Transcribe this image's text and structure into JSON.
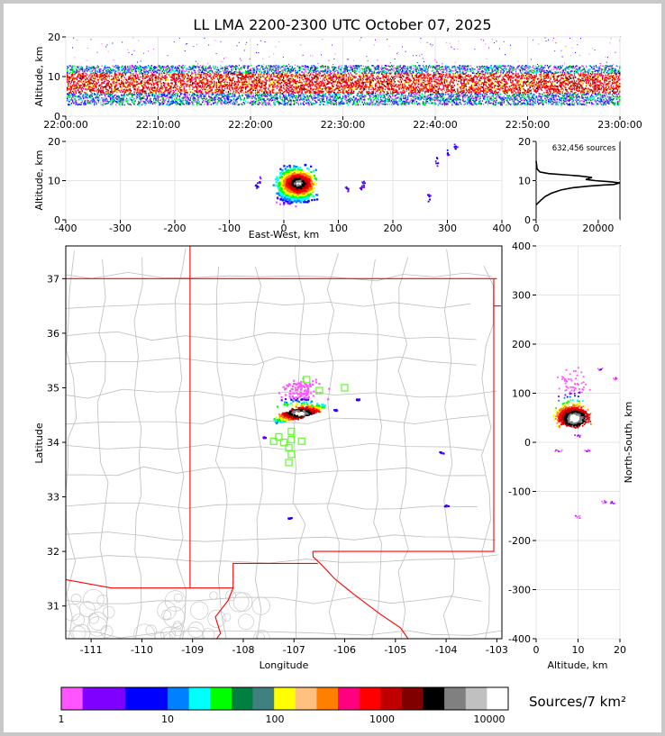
{
  "title": "LL LMA 2200-2300 UTC October 07, 2025",
  "chart_data": [
    {
      "panel": "altitude-time",
      "type": "scatter",
      "ylabel": "Altitude, km",
      "ylim": [
        0,
        20
      ],
      "yticks": [
        "0",
        "10",
        "20"
      ],
      "xlim": [
        "22:00:00",
        "23:00:00"
      ],
      "xticks": [
        "22:00:00",
        "22:10:00",
        "22:20:00",
        "22:30:00",
        "22:40:00",
        "22:50:00",
        "23:00:00"
      ],
      "band_km": [
        3,
        13
      ],
      "dense_core_km": [
        6,
        11
      ],
      "grid": true
    },
    {
      "panel": "altitude-east-west",
      "type": "heatmap",
      "xlabel": "East-West, km",
      "ylabel": "Altitude, km",
      "xlim": [
        -400,
        400
      ],
      "ylim": [
        0,
        20
      ],
      "xticks": [
        "-400",
        "-300",
        "-200",
        "-100",
        "0",
        "100",
        "200",
        "300",
        "400"
      ],
      "yticks": [
        "0",
        "10",
        "20"
      ],
      "grid": true
    },
    {
      "panel": "source-count-histogram",
      "type": "line",
      "annotation": "632,456 sources",
      "xlim": [
        0,
        27000
      ],
      "ylim": [
        0,
        20
      ],
      "xticks": [
        "0",
        "20000"
      ],
      "yticks": [
        "0",
        "10",
        "20"
      ],
      "points": [
        [
          0,
          3.8
        ],
        [
          500,
          4.2
        ],
        [
          1500,
          5
        ],
        [
          3000,
          6
        ],
        [
          5000,
          6.8
        ],
        [
          8000,
          7.6
        ],
        [
          12000,
          8.2
        ],
        [
          17000,
          8.6
        ],
        [
          22000,
          8.9
        ],
        [
          25000,
          9
        ],
        [
          27000,
          9.4
        ],
        [
          24000,
          9.7
        ],
        [
          19000,
          10
        ],
        [
          16000,
          10.3
        ],
        [
          18000,
          10.8
        ],
        [
          14000,
          11.2
        ],
        [
          9000,
          11.5
        ],
        [
          4000,
          11.8
        ],
        [
          1200,
          12.2
        ],
        [
          300,
          13
        ],
        [
          0,
          15
        ]
      ]
    },
    {
      "panel": "plan-view",
      "type": "scatter",
      "xlabel": "Longitude",
      "ylabel": "Latitude",
      "xlim": [
        -111.5,
        -102.9
      ],
      "ylim": [
        30.4,
        37.6
      ],
      "xticks": [
        "-111",
        "-110",
        "-109",
        "-108",
        "-107",
        "-106",
        "-105",
        "-104",
        "-103"
      ],
      "yticks": [
        "31",
        "32",
        "33",
        "34",
        "35",
        "36",
        "37"
      ],
      "core_center": [
        -106.9,
        34.55
      ],
      "stations": [
        [
          -106.75,
          35.15
        ],
        [
          -106.5,
          34.95
        ],
        [
          -106.0,
          35.0
        ],
        [
          -107.3,
          34.1
        ],
        [
          -107.4,
          34.02
        ],
        [
          -107.2,
          34.0
        ],
        [
          -107.05,
          34.05
        ],
        [
          -106.85,
          34.02
        ],
        [
          -107.05,
          34.2
        ],
        [
          -107.1,
          33.9
        ],
        [
          -107.05,
          33.78
        ],
        [
          -107.1,
          33.63
        ]
      ],
      "outliers": [
        [
          -107.1,
          32.62
        ],
        [
          -104.0,
          32.85
        ],
        [
          -104.1,
          33.82
        ],
        [
          -105.75,
          34.8
        ],
        [
          -106.2,
          34.6
        ],
        [
          -107.6,
          34.1
        ]
      ]
    },
    {
      "panel": "altitude-north-south",
      "type": "heatmap",
      "xlabel": "Altitude, km",
      "ylabel": "North-South, km",
      "xlim": [
        0,
        20
      ],
      "ylim": [
        -400,
        400
      ],
      "xticks": [
        "0",
        "10",
        "20"
      ],
      "yticks": [
        "-400",
        "-300",
        "-200",
        "-100",
        "0",
        "100",
        "200",
        "300",
        "400"
      ],
      "grid": true
    }
  ],
  "colorbar": {
    "label": "Sources/7 km²",
    "ticks": [
      "1",
      "10",
      "100",
      "1000",
      "10000"
    ],
    "colors": [
      "#ff55ff",
      "#8000ff",
      "#8000ff",
      "#0000ff",
      "#0000ff",
      "#0080ff",
      "#00ffff",
      "#00ff00",
      "#008040",
      "#408080",
      "#ffff00",
      "#ffc080",
      "#ff8000",
      "#ff0080",
      "#ff0000",
      "#c00000",
      "#800000",
      "#000000",
      "#808080",
      "#c0c0c0",
      "#ffffff"
    ]
  }
}
